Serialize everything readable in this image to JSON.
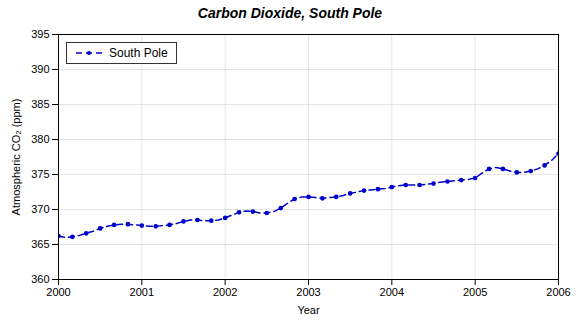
{
  "chart_data": {
    "type": "line",
    "title": "Carbon Dioxide, South Pole",
    "xlabel": "Year",
    "ylabel": "Atmospheric CO₂ (ppm)",
    "x": [
      2000.0,
      2000.083,
      2000.167,
      2000.25,
      2000.333,
      2000.417,
      2000.5,
      2000.583,
      2000.667,
      2000.75,
      2000.833,
      2000.917,
      2001.0,
      2001.083,
      2001.167,
      2001.25,
      2001.333,
      2001.417,
      2001.5,
      2001.583,
      2001.667,
      2001.75,
      2001.833,
      2001.917,
      2002.0,
      2002.083,
      2002.167,
      2002.25,
      2002.333,
      2002.417,
      2002.5,
      2002.583,
      2002.667,
      2002.75,
      2002.833,
      2002.917,
      2003.0,
      2003.083,
      2003.167,
      2003.25,
      2003.333,
      2003.417,
      2003.5,
      2003.583,
      2003.667,
      2003.75,
      2003.833,
      2003.917,
      2004.0,
      2004.083,
      2004.167,
      2004.25,
      2004.333,
      2004.417,
      2004.5,
      2004.583,
      2004.667,
      2004.75,
      2004.833,
      2004.917,
      2005.0,
      2005.083,
      2005.167,
      2005.25,
      2005.333,
      2005.417,
      2005.5,
      2005.583,
      2005.667,
      2005.75,
      2005.833,
      2005.917,
      2006.0
    ],
    "series": [
      {
        "name": "South Pole",
        "color": "#0000CC",
        "line_style": "dashed",
        "marker": "circle",
        "values": [
          366.2,
          366.0,
          366.1,
          366.3,
          366.6,
          366.9,
          367.3,
          367.6,
          367.8,
          367.9,
          367.9,
          367.8,
          367.7,
          367.6,
          367.6,
          367.7,
          367.8,
          368.0,
          368.3,
          368.5,
          368.5,
          368.4,
          368.4,
          368.5,
          368.8,
          369.2,
          369.6,
          369.8,
          369.7,
          369.5,
          369.5,
          369.7,
          370.2,
          370.9,
          371.5,
          371.8,
          371.8,
          371.7,
          371.6,
          371.7,
          371.8,
          372.0,
          372.3,
          372.5,
          372.7,
          372.8,
          372.9,
          373.0,
          373.2,
          373.4,
          373.5,
          373.5,
          373.5,
          373.6,
          373.7,
          373.9,
          374.0,
          374.1,
          374.2,
          374.3,
          374.5,
          375.2,
          375.8,
          376.0,
          375.8,
          375.5,
          375.3,
          375.3,
          375.5,
          375.8,
          376.3,
          377.0,
          378.0
        ]
      }
    ],
    "xlim": [
      2000,
      2006
    ],
    "xticks": [
      2000,
      2001,
      2002,
      2003,
      2004,
      2005,
      2006
    ],
    "ylim": [
      360,
      395
    ],
    "yticks": [
      360,
      365,
      370,
      375,
      380,
      385,
      390,
      395
    ],
    "grid": true,
    "legend": "upper left"
  }
}
